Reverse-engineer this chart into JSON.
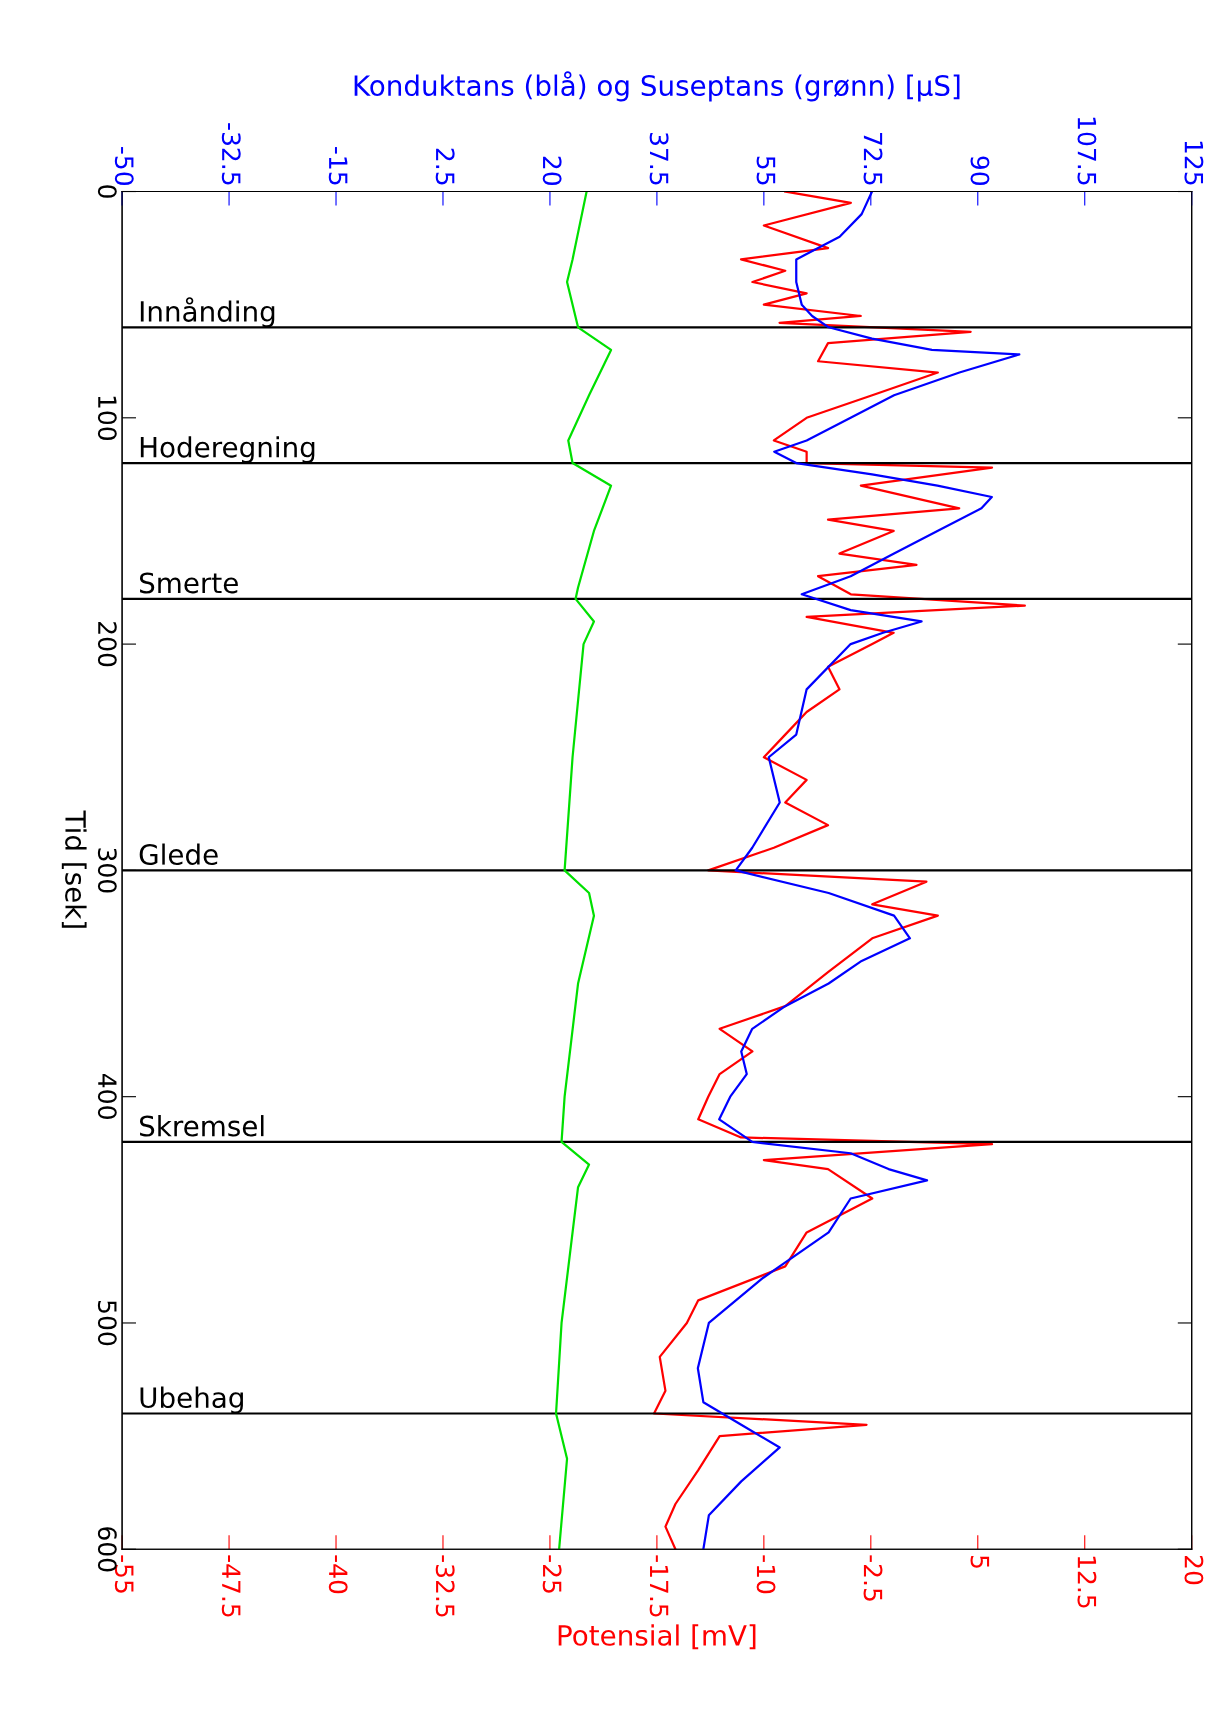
{
  "chart_data": {
    "type": "line",
    "orientation": "horizontal",
    "xlabel": "Potensial [mV]",
    "x2label": "Konduktans (blå) og Suseptans (grønn) [μS]",
    "ylabel": "Tid [sek]",
    "xlim": [
      -55,
      20
    ],
    "xticks": [
      -55,
      -47.5,
      -40,
      -32.5,
      -25,
      -17.5,
      -10,
      -2.5,
      5,
      12.5,
      20
    ],
    "x2lim": [
      -50,
      125
    ],
    "x2ticks": [
      -50,
      -32.5,
      -15,
      2.5,
      20,
      37.5,
      55,
      72.5,
      90,
      107.5,
      125
    ],
    "ylim": [
      600,
      0
    ],
    "yticks": [
      0,
      100,
      200,
      300,
      400,
      500,
      600
    ],
    "grid": false,
    "legend": false,
    "ref_lines": [
      {
        "axis": "y",
        "value": 60,
        "label": "Innånding",
        "color": "#000000"
      },
      {
        "axis": "y",
        "value": 120,
        "label": "Hoderegning",
        "color": "#000000"
      },
      {
        "axis": "y",
        "value": 180,
        "label": "Smerte",
        "color": "#000000"
      },
      {
        "axis": "y",
        "value": 300,
        "label": "Glede",
        "color": "#000000"
      },
      {
        "axis": "y",
        "value": 420,
        "label": "Skremsel",
        "color": "#000000"
      },
      {
        "axis": "y",
        "value": 540,
        "label": "Ubehag",
        "color": "#000000"
      }
    ],
    "series": [
      {
        "color": "#00e000",
        "axis": "x2",
        "x": [
          0,
          30,
          40,
          60,
          70,
          90,
          110,
          120,
          130,
          150,
          175,
          180,
          190,
          200,
          250,
          300,
          310,
          320,
          350,
          400,
          420,
          430,
          440,
          500,
          540,
          560,
          600
        ],
        "values": [
          26,
          23.7,
          22.8,
          24.6,
          30,
          26.4,
          23,
          23.7,
          30,
          27.2,
          24.6,
          24.2,
          27.2,
          25.5,
          23.7,
          22.4,
          26.4,
          27.2,
          24.6,
          22.4,
          21.9,
          26.4,
          24.6,
          21.9,
          21,
          22.8,
          21.5
        ]
      },
      {
        "color": "#0000ff",
        "axis": "x2",
        "x": [
          0,
          10,
          20,
          30,
          40,
          50,
          55,
          60,
          65,
          70,
          72,
          80,
          90,
          100,
          110,
          115,
          120,
          125,
          130,
          135,
          140,
          150,
          160,
          170,
          178,
          185,
          190,
          195,
          200,
          220,
          240,
          250,
          270,
          290,
          300,
          310,
          320,
          330,
          340,
          350,
          360,
          370,
          380,
          390,
          400,
          410,
          420,
          425,
          432,
          437,
          445,
          460,
          480,
          500,
          520,
          535,
          545,
          555,
          570,
          585,
          600
        ],
        "values": [
          72.7,
          71,
          67.4,
          60.3,
          60.3,
          61.2,
          62.9,
          65.6,
          72.7,
          82.5,
          96.8,
          87,
          76.3,
          69.2,
          62,
          56.7,
          60.3,
          72.7,
          83.4,
          92.3,
          90.6,
          83.4,
          76.3,
          69.2,
          61.2,
          69.2,
          80.8,
          74.5,
          69.2,
          62,
          60.3,
          55.8,
          57.6,
          53.1,
          50.4,
          65.6,
          76.3,
          78.9,
          71,
          65.6,
          58.5,
          53.1,
          51.3,
          52.2,
          49.5,
          47.7,
          53.1,
          69.2,
          75.4,
          81.7,
          69.2,
          65.6,
          54.9,
          46,
          44.2,
          45.1,
          51.3,
          57.6,
          51.3,
          46,
          45.1
        ]
      },
      {
        "color": "#ff0000",
        "x": [
          0,
          5,
          15,
          25,
          30,
          35,
          40,
          45,
          50,
          55,
          58,
          62,
          67,
          75,
          80,
          90,
          100,
          110,
          115,
          120,
          122,
          130,
          140,
          145,
          150,
          160,
          165,
          170,
          178,
          183,
          188,
          195,
          200,
          210,
          220,
          230,
          240,
          250,
          260,
          270,
          280,
          290,
          300,
          305,
          315,
          320,
          330,
          345,
          360,
          370,
          380,
          390,
          400,
          410,
          418,
          421,
          428,
          432,
          445,
          460,
          475,
          490,
          500,
          515,
          530,
          540,
          545,
          550,
          565,
          580,
          590,
          600
        ],
        "values": [
          -8.5,
          -3.9,
          -10,
          -5.5,
          -11.6,
          -8.5,
          -10.8,
          -7,
          -10,
          -3.2,
          -8.9,
          4.5,
          -5.5,
          -6.2,
          2.2,
          -2.4,
          -7,
          -9.3,
          -7,
          -7,
          6,
          -3.2,
          3.7,
          -5.5,
          -0.9,
          -4.7,
          0.7,
          -6.2,
          -3.9,
          8.3,
          -7,
          -0.9,
          -2.4,
          -5.5,
          -4.7,
          -7,
          -8.5,
          -10,
          -7,
          -8.5,
          -5.5,
          -9.3,
          -13.9,
          1.4,
          -2.4,
          2.2,
          -2.4,
          -5.5,
          -8.5,
          -13.1,
          -10.8,
          -13.1,
          -13.9,
          -14.6,
          -11.6,
          6,
          -10,
          -5.5,
          -2.4,
          -7,
          -8.5,
          -14.6,
          -15.4,
          -17.3,
          -16.9,
          -17.7,
          -2.8,
          -13.1,
          -14.6,
          -16.2,
          -16.9,
          -16.2
        ]
      }
    ]
  }
}
